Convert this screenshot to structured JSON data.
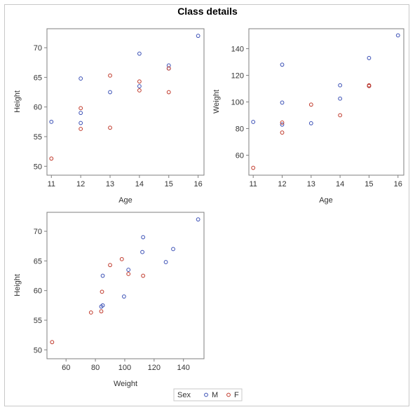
{
  "title": "Class details",
  "colors": {
    "M": "#3a4fb5",
    "F": "#c0392b",
    "axis": "#7f7f7f",
    "frame": "#c8c8c8"
  },
  "legend": {
    "title": "Sex",
    "items": [
      "M",
      "F"
    ]
  },
  "chart_data": [
    {
      "type": "scatter",
      "xlabel": "Age",
      "ylabel": "Height",
      "xlim": [
        10.85,
        16.2
      ],
      "ylim": [
        48.5,
        73.2
      ],
      "xticks": [
        11,
        12,
        13,
        14,
        15,
        16
      ],
      "yticks": [
        50,
        55,
        60,
        65,
        70
      ],
      "series": [
        {
          "name": "M",
          "points": [
            [
              11,
              57.5
            ],
            [
              12,
              64.8
            ],
            [
              12,
              59.0
            ],
            [
              12,
              57.3
            ],
            [
              13,
              62.5
            ],
            [
              14,
              69.0
            ],
            [
              14,
              63.5
            ],
            [
              15,
              67.0
            ],
            [
              15,
              66.5
            ],
            [
              16,
              72.0
            ]
          ]
        },
        {
          "name": "F",
          "points": [
            [
              11,
              51.3
            ],
            [
              12,
              59.8
            ],
            [
              12,
              56.3
            ],
            [
              13,
              65.3
            ],
            [
              13,
              56.5
            ],
            [
              14,
              64.3
            ],
            [
              14,
              62.8
            ],
            [
              15,
              62.5
            ],
            [
              15,
              66.5
            ]
          ]
        }
      ]
    },
    {
      "type": "scatter",
      "xlabel": "Age",
      "ylabel": "Weight",
      "xlim": [
        10.85,
        16.2
      ],
      "ylim": [
        45,
        155
      ],
      "xticks": [
        11,
        12,
        13,
        14,
        15,
        16
      ],
      "yticks": [
        60,
        80,
        100,
        120,
        140
      ],
      "series": [
        {
          "name": "M",
          "points": [
            [
              11,
              85
            ],
            [
              12,
              128
            ],
            [
              12,
              99.5
            ],
            [
              12,
              83
            ],
            [
              13,
              84
            ],
            [
              14,
              112.5
            ],
            [
              14,
              102.5
            ],
            [
              15,
              133
            ],
            [
              15,
              112
            ],
            [
              16,
              150
            ]
          ]
        },
        {
          "name": "F",
          "points": [
            [
              11,
              50.5
            ],
            [
              12,
              84.5
            ],
            [
              12,
              77
            ],
            [
              13,
              98
            ],
            [
              14,
              90
            ],
            [
              15,
              112.5
            ],
            [
              15,
              112
            ]
          ]
        }
      ]
    },
    {
      "type": "scatter",
      "xlabel": "Weight",
      "ylabel": "Height",
      "xlim": [
        47,
        154
      ],
      "ylim": [
        48.5,
        73.2
      ],
      "xticks": [
        60,
        80,
        100,
        120,
        140
      ],
      "yticks": [
        50,
        55,
        60,
        65,
        70
      ],
      "series": [
        {
          "name": "M",
          "points": [
            [
              84,
              57.3
            ],
            [
              85,
              57.5
            ],
            [
              85,
              62.5
            ],
            [
              99.5,
              59
            ],
            [
              102.5,
              63.5
            ],
            [
              112,
              66.5
            ],
            [
              112.5,
              69
            ],
            [
              128,
              64.8
            ],
            [
              133,
              67
            ],
            [
              150,
              72
            ]
          ]
        },
        {
          "name": "F",
          "points": [
            [
              50.5,
              51.3
            ],
            [
              77,
              56.3
            ],
            [
              84,
              56.5
            ],
            [
              84.5,
              59.8
            ],
            [
              90,
              64.3
            ],
            [
              98,
              65.3
            ],
            [
              102.5,
              62.8
            ],
            [
              112.5,
              62.5
            ]
          ]
        }
      ]
    }
  ]
}
